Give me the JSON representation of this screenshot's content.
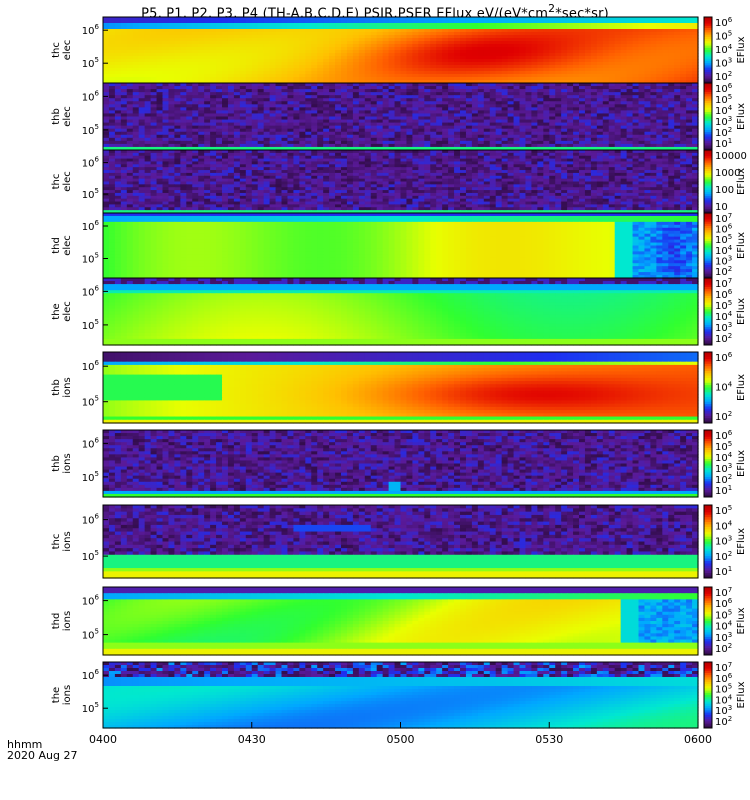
{
  "chart_data": {
    "type": "heatmap",
    "title": "P5, P1, P2, P3, P4 (TH-A,B,C,D,E) PSIR,PSER EFlux eV/(eV*cm²*sec*sr)",
    "xlabel_format": "hhmm",
    "xlabel_date": "2020 Aug 27",
    "x_ticks": [
      "0400",
      "0430",
      "0500",
      "0530",
      "0600"
    ],
    "xlim": [
      "0400",
      "0600"
    ],
    "colorbar_label": "EFlux",
    "colormap": [
      "#2a0a3a",
      "#5a1a9a",
      "#1e2ef0",
      "#00a8ff",
      "#00e8d0",
      "#30ff30",
      "#e8ff00",
      "#ffc000",
      "#ff6000",
      "#e00000",
      "#b00000"
    ],
    "panels": [
      {
        "name": "thc elec",
        "ylabel": [
          "thc",
          "elec"
        ],
        "yticks": [
          "10",
          "10"
        ],
        "yexp": [
          "6",
          "5"
        ],
        "cbar_ticks": [
          {
            "m": "10",
            "e": "6"
          },
          {
            "m": "10",
            "e": "5"
          },
          {
            "m": "10",
            "e": "4"
          },
          {
            "m": "10",
            "e": "3"
          },
          {
            "m": "10",
            "e": "2"
          }
        ],
        "pattern": "thc_elec"
      },
      {
        "name": "thb elec",
        "ylabel": [
          "thb",
          "elec"
        ],
        "yticks": [
          "10",
          "10"
        ],
        "yexp": [
          "6",
          "5"
        ],
        "cbar_ticks": [
          {
            "m": "10",
            "e": "6"
          },
          {
            "m": "10",
            "e": "5"
          },
          {
            "m": "10",
            "e": "4"
          },
          {
            "m": "10",
            "e": "3"
          },
          {
            "m": "10",
            "e": "2"
          },
          {
            "m": "10",
            "e": "1"
          }
        ],
        "pattern": "noise"
      },
      {
        "name": "thc elec 2",
        "ylabel": [
          "thc",
          "elec"
        ],
        "yticks": [
          "10",
          "10"
        ],
        "yexp": [
          "6",
          "5"
        ],
        "cbar_ticks": [
          {
            "m": "10000",
            "e": ""
          },
          {
            "m": "1000",
            "e": ""
          },
          {
            "m": "100",
            "e": ""
          },
          {
            "m": "10",
            "e": ""
          }
        ],
        "pattern": "noise"
      },
      {
        "name": "thd elec",
        "ylabel": [
          "thd",
          "elec"
        ],
        "yticks": [
          "10",
          "10"
        ],
        "yexp": [
          "6",
          "5"
        ],
        "cbar_ticks": [
          {
            "m": "10",
            "e": "7"
          },
          {
            "m": "10",
            "e": "6"
          },
          {
            "m": "10",
            "e": "5"
          },
          {
            "m": "10",
            "e": "4"
          },
          {
            "m": "10",
            "e": "3"
          },
          {
            "m": "10",
            "e": "2"
          }
        ],
        "pattern": "thd"
      },
      {
        "name": "the elec",
        "ylabel": [
          "the",
          "elec"
        ],
        "yticks": [
          "10",
          "10"
        ],
        "yexp": [
          "6",
          "5"
        ],
        "cbar_ticks": [
          {
            "m": "10",
            "e": "7"
          },
          {
            "m": "10",
            "e": "6"
          },
          {
            "m": "10",
            "e": "5"
          },
          {
            "m": "10",
            "e": "4"
          },
          {
            "m": "10",
            "e": "3"
          },
          {
            "m": "10",
            "e": "2"
          }
        ],
        "pattern": "the_elec"
      },
      {
        "name": "thb ions",
        "ylabel": [
          "thb",
          "ions"
        ],
        "yticks": [
          "10",
          "10"
        ],
        "yexp": [
          "6",
          "5"
        ],
        "cbar_ticks": [
          {
            "m": "10",
            "e": "6"
          },
          {
            "m": "10",
            "e": "4"
          },
          {
            "m": "10",
            "e": "2"
          }
        ],
        "pattern": "thb_ions"
      },
      {
        "name": "thb ions 2",
        "ylabel": [
          "thb",
          "ions"
        ],
        "yticks": [
          "10",
          "10"
        ],
        "yexp": [
          "6",
          "5"
        ],
        "cbar_ticks": [
          {
            "m": "10",
            "e": "6"
          },
          {
            "m": "10",
            "e": "5"
          },
          {
            "m": "10",
            "e": "4"
          },
          {
            "m": "10",
            "e": "3"
          },
          {
            "m": "10",
            "e": "2"
          },
          {
            "m": "10",
            "e": "1"
          }
        ],
        "pattern": "noise_ions"
      },
      {
        "name": "thc ions",
        "ylabel": [
          "thc",
          "ions"
        ],
        "yticks": [
          "10",
          "10"
        ],
        "yexp": [
          "6",
          "5"
        ],
        "cbar_ticks": [
          {
            "m": "10",
            "e": "5"
          },
          {
            "m": "10",
            "e": "4"
          },
          {
            "m": "10",
            "e": "3"
          },
          {
            "m": "10",
            "e": "2"
          },
          {
            "m": "10",
            "e": "1"
          }
        ],
        "pattern": "thc_ions"
      },
      {
        "name": "thd ions",
        "ylabel": [
          "thd",
          "ions"
        ],
        "yticks": [
          "10",
          "10"
        ],
        "yexp": [
          "6",
          "5"
        ],
        "cbar_ticks": [
          {
            "m": "10",
            "e": "7"
          },
          {
            "m": "10",
            "e": "6"
          },
          {
            "m": "10",
            "e": "5"
          },
          {
            "m": "10",
            "e": "4"
          },
          {
            "m": "10",
            "e": "3"
          },
          {
            "m": "10",
            "e": "2"
          }
        ],
        "pattern": "thd_ions"
      },
      {
        "name": "the ions",
        "ylabel": [
          "the",
          "ions"
        ],
        "yticks": [
          "10",
          "10"
        ],
        "yexp": [
          "6",
          "5"
        ],
        "cbar_ticks": [
          {
            "m": "10",
            "e": "7"
          },
          {
            "m": "10",
            "e": "6"
          },
          {
            "m": "10",
            "e": "5"
          },
          {
            "m": "10",
            "e": "4"
          },
          {
            "m": "10",
            "e": "3"
          },
          {
            "m": "10",
            "e": "2"
          }
        ],
        "pattern": "the_ions"
      }
    ]
  }
}
